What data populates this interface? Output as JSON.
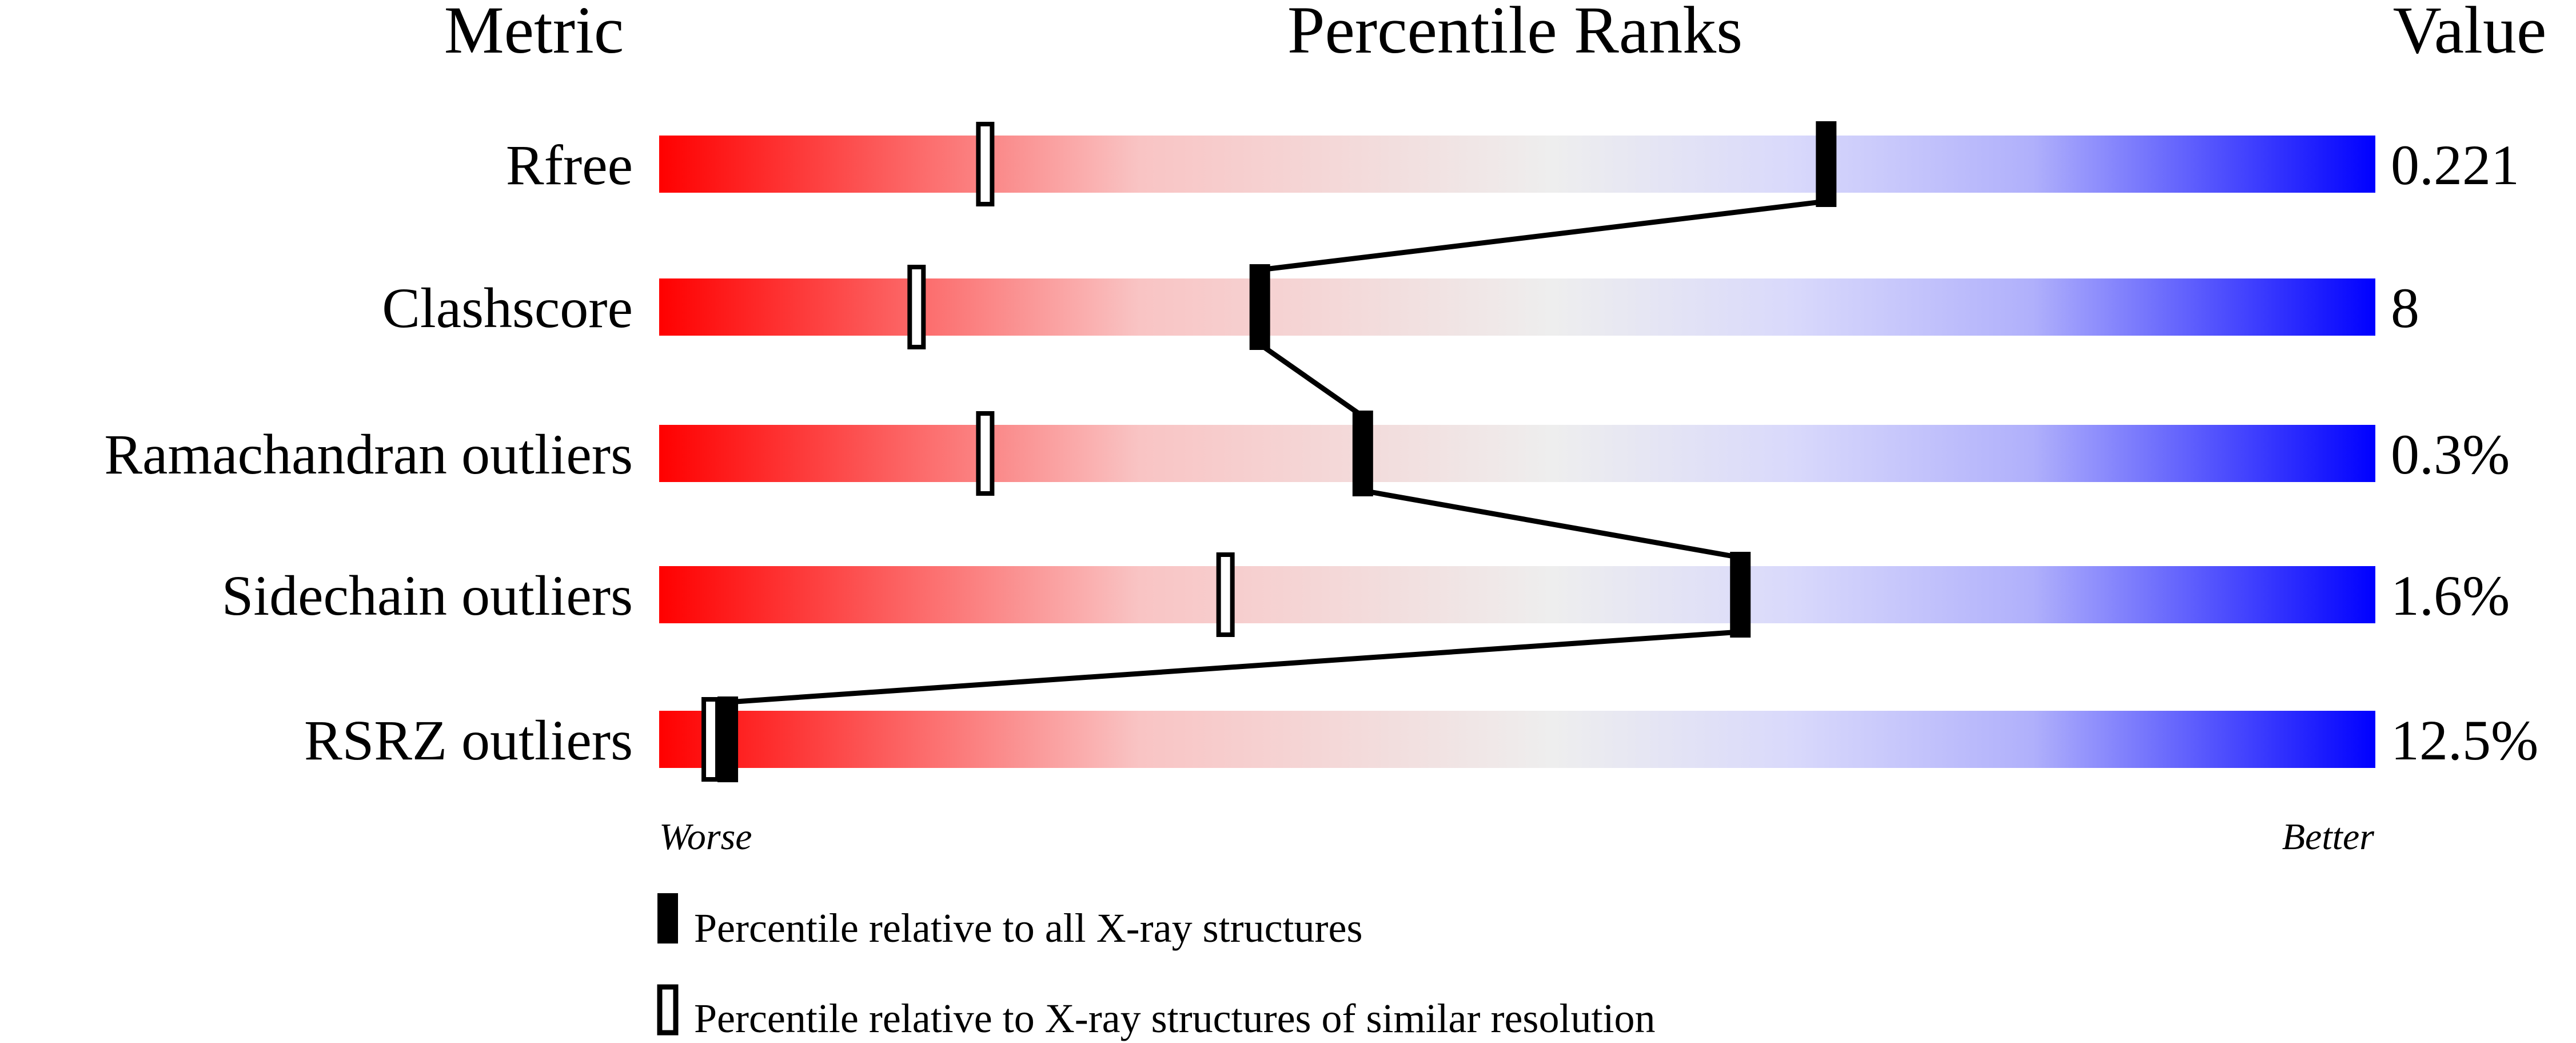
{
  "chart_data": {
    "type": "percentile-slider",
    "headers": {
      "metric": "Metric",
      "ranks": "Percentile Ranks",
      "value": "Value"
    },
    "xlim": [
      0,
      100
    ],
    "metrics": [
      {
        "name": "Rfree",
        "value": "0.221",
        "percentile_all": 68,
        "percentile_similar": 19
      },
      {
        "name": "Clashscore",
        "value": "8",
        "percentile_all": 35,
        "percentile_similar": 15
      },
      {
        "name": "Ramachandran outliers",
        "value": "0.3%",
        "percentile_all": 41,
        "percentile_similar": 19
      },
      {
        "name": "Sidechain outliers",
        "value": "1.6%",
        "percentile_all": 63,
        "percentile_similar": 33
      },
      {
        "name": "RSRZ outliers",
        "value": "12.5%",
        "percentile_all": 4,
        "percentile_similar": 3
      }
    ],
    "scale_labels": {
      "worse": "Worse",
      "better": "Better"
    },
    "legend": {
      "all": "Percentile relative to all X-ray structures",
      "similar": "Percentile relative to X-ray structures of similar resolution"
    },
    "colors": {
      "worse": "#ff0000",
      "mid": "#eeeeee",
      "better": "#0000ff"
    }
  }
}
